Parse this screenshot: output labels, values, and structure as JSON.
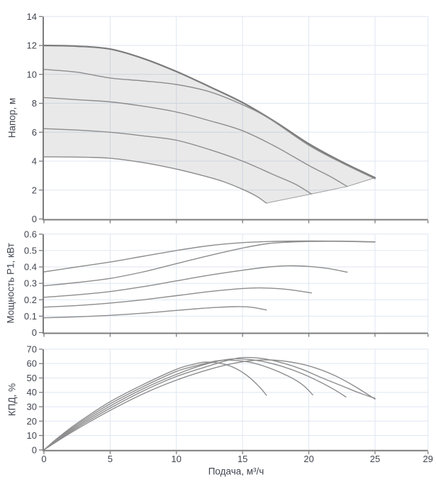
{
  "x_axis": {
    "label": "Подача, м³/ч",
    "min": 0,
    "max": 29,
    "tick_values": [
      0,
      5,
      10,
      15,
      20,
      25,
      29
    ],
    "tick_labels": [
      "0",
      "5",
      "10",
      "15",
      "20",
      "25",
      "29"
    ]
  },
  "colors": {
    "background": "#ffffff",
    "grid": "#dfe6f2",
    "axis": "#7c7c7c",
    "curve": "#8d8d8d",
    "curve_bold": "#7b7b7b",
    "envelope_fill": "rgba(120,120,120,0.16)",
    "envelope_edge": "#9d9d9d",
    "text": "#40454f"
  },
  "chart_data": [
    {
      "type": "line",
      "name": "head",
      "ylabel": "Напор, м",
      "ylim": [
        0,
        14
      ],
      "ytick_values": [
        0,
        2,
        4,
        6,
        8,
        10,
        12,
        14
      ],
      "ytick_labels": [
        "0",
        "2",
        "4",
        "6",
        "8",
        "10",
        "12",
        "14"
      ],
      "grid": true,
      "envelope_bottom": [
        [
          16.8,
          1.1
        ],
        [
          20.2,
          1.73
        ],
        [
          22.9,
          2.25
        ],
        [
          25,
          2.85
        ]
      ],
      "series": [
        {
          "name": "head-speed-1",
          "bold": true,
          "points": [
            [
              0,
              12.0
            ],
            [
              2.5,
              11.95
            ],
            [
              5,
              11.75
            ],
            [
              7.5,
              11.1
            ],
            [
              10,
              10.2
            ],
            [
              12.5,
              9.15
            ],
            [
              15,
              8.05
            ],
            [
              17.5,
              6.7
            ],
            [
              20,
              5.2
            ],
            [
              22.5,
              3.95
            ],
            [
              25,
              2.85
            ]
          ]
        },
        {
          "name": "head-speed-2",
          "points": [
            [
              0,
              10.35
            ],
            [
              2.5,
              10.15
            ],
            [
              5,
              9.75
            ],
            [
              7.5,
              9.55
            ],
            [
              10,
              9.3
            ],
            [
              12.5,
              8.8
            ],
            [
              15,
              7.9
            ],
            [
              17,
              6.95
            ],
            [
              20,
              5.1
            ],
            [
              22.5,
              3.88
            ],
            [
              25,
              2.78
            ]
          ]
        },
        {
          "name": "head-speed-3",
          "points": [
            [
              0,
              8.4
            ],
            [
              2.5,
              8.25
            ],
            [
              5,
              8.1
            ],
            [
              7.5,
              7.8
            ],
            [
              10,
              7.4
            ],
            [
              12.5,
              6.8
            ],
            [
              15,
              6.1
            ],
            [
              17.5,
              5.0
            ],
            [
              20,
              3.7
            ],
            [
              21.5,
              3.0
            ],
            [
              22.9,
              2.25
            ]
          ]
        },
        {
          "name": "head-speed-4",
          "points": [
            [
              0,
              6.25
            ],
            [
              2.5,
              6.15
            ],
            [
              5,
              6.0
            ],
            [
              7.5,
              5.75
            ],
            [
              10,
              5.45
            ],
            [
              12.5,
              4.8
            ],
            [
              15,
              4.0
            ],
            [
              17.5,
              3.0
            ],
            [
              19,
              2.4
            ],
            [
              20.2,
              1.73
            ]
          ]
        },
        {
          "name": "head-speed-5",
          "points": [
            [
              0,
              4.3
            ],
            [
              2.5,
              4.28
            ],
            [
              5,
              4.2
            ],
            [
              7.5,
              3.9
            ],
            [
              10,
              3.45
            ],
            [
              12,
              3.0
            ],
            [
              13.5,
              2.6
            ],
            [
              15,
              2.05
            ],
            [
              16,
              1.6
            ],
            [
              16.8,
              1.1
            ]
          ]
        }
      ]
    },
    {
      "type": "line",
      "name": "power",
      "ylabel": "Мощность P1, кВт",
      "ylim": [
        0,
        0.6
      ],
      "ytick_values": [
        0,
        0.1,
        0.2,
        0.3,
        0.4,
        0.5,
        0.6
      ],
      "ytick_labels": [
        "0",
        "0.1",
        "0.2",
        "0.3",
        "0.4",
        "0.5",
        "0.6"
      ],
      "grid": true,
      "series": [
        {
          "name": "power-speed-1",
          "points": [
            [
              0,
              0.37
            ],
            [
              2.5,
              0.4
            ],
            [
              5,
              0.43
            ],
            [
              7.5,
              0.465
            ],
            [
              10,
              0.5
            ],
            [
              12.5,
              0.53
            ],
            [
              15,
              0.548
            ],
            [
              17.5,
              0.556
            ],
            [
              20,
              0.558
            ],
            [
              22.5,
              0.557
            ],
            [
              25,
              0.553
            ]
          ]
        },
        {
          "name": "power-speed-2",
          "points": [
            [
              0,
              0.285
            ],
            [
              2.5,
              0.305
            ],
            [
              5,
              0.33
            ],
            [
              7.5,
              0.37
            ],
            [
              10,
              0.42
            ],
            [
              12.5,
              0.47
            ],
            [
              15,
              0.515
            ],
            [
              17,
              0.543
            ],
            [
              19,
              0.553
            ],
            [
              21,
              0.556
            ],
            [
              23,
              0.555
            ],
            [
              25,
              0.552
            ]
          ]
        },
        {
          "name": "power-speed-3",
          "points": [
            [
              0,
              0.215
            ],
            [
              2.5,
              0.23
            ],
            [
              5,
              0.25
            ],
            [
              7.5,
              0.28
            ],
            [
              10,
              0.315
            ],
            [
              12.5,
              0.35
            ],
            [
              15,
              0.38
            ],
            [
              17,
              0.4
            ],
            [
              18.5,
              0.407
            ],
            [
              20,
              0.403
            ],
            [
              21.5,
              0.39
            ],
            [
              22.9,
              0.368
            ]
          ]
        },
        {
          "name": "power-speed-4",
          "points": [
            [
              0,
              0.155
            ],
            [
              2.5,
              0.165
            ],
            [
              5,
              0.18
            ],
            [
              7.5,
              0.2
            ],
            [
              10,
              0.225
            ],
            [
              12.5,
              0.25
            ],
            [
              14,
              0.262
            ],
            [
              15.5,
              0.271
            ],
            [
              17,
              0.271
            ],
            [
              18.5,
              0.262
            ],
            [
              20.2,
              0.242
            ]
          ]
        },
        {
          "name": "power-speed-5",
          "points": [
            [
              0,
              0.09
            ],
            [
              2.5,
              0.096
            ],
            [
              5,
              0.105
            ],
            [
              7.5,
              0.118
            ],
            [
              10,
              0.135
            ],
            [
              11.5,
              0.145
            ],
            [
              13,
              0.153
            ],
            [
              14.5,
              0.158
            ],
            [
              15.7,
              0.154
            ],
            [
              16.8,
              0.138
            ]
          ]
        }
      ]
    },
    {
      "type": "line",
      "name": "efficiency",
      "ylabel": "КПД, %",
      "ylim": [
        0,
        70
      ],
      "ytick_values": [
        0,
        10,
        20,
        30,
        40,
        50,
        60,
        70
      ],
      "ytick_labels": [
        "0",
        "10",
        "20",
        "30",
        "40",
        "50",
        "60",
        "70"
      ],
      "grid": true,
      "series": [
        {
          "name": "efficiency-speed-1",
          "points": [
            [
              0,
              0
            ],
            [
              1,
              6
            ],
            [
              2.5,
              14.5
            ],
            [
              5,
              27.5
            ],
            [
              7.5,
              39
            ],
            [
              10,
              48.5
            ],
            [
              12.5,
              56
            ],
            [
              14.5,
              60.5
            ],
            [
              16,
              62.3
            ],
            [
              17.5,
              62.3
            ],
            [
              19,
              60.5
            ],
            [
              20.5,
              57
            ],
            [
              22,
              51.5
            ],
            [
              23.5,
              44
            ],
            [
              25,
              35.3
            ]
          ]
        },
        {
          "name": "efficiency-speed-2",
          "points": [
            [
              0,
              0
            ],
            [
              1,
              6.5
            ],
            [
              2.5,
              15.5
            ],
            [
              5,
              29
            ],
            [
              7.5,
              41
            ],
            [
              10,
              51
            ],
            [
              12.5,
              58.5
            ],
            [
              14,
              62.5
            ],
            [
              15,
              64.2
            ],
            [
              16.5,
              63.5
            ],
            [
              18,
              60.5
            ],
            [
              19.5,
              56
            ],
            [
              21,
              50
            ],
            [
              22.5,
              44.5
            ],
            [
              23.7,
              40
            ],
            [
              25,
              35.8
            ]
          ]
        },
        {
          "name": "efficiency-speed-3",
          "points": [
            [
              0,
              0
            ],
            [
              1,
              7
            ],
            [
              2.5,
              16.5
            ],
            [
              5,
              30.5
            ],
            [
              7.5,
              42.5
            ],
            [
              10,
              52.5
            ],
            [
              12,
              59
            ],
            [
              13.8,
              62.8
            ],
            [
              15,
              63.2
            ],
            [
              16.5,
              61.5
            ],
            [
              18,
              58
            ],
            [
              19.5,
              53
            ],
            [
              21,
              46.5
            ],
            [
              22,
              41.5
            ],
            [
              22.8,
              36.8
            ]
          ]
        },
        {
          "name": "efficiency-speed-4",
          "points": [
            [
              0,
              0
            ],
            [
              1,
              7.5
            ],
            [
              2.5,
              17.5
            ],
            [
              5,
              32
            ],
            [
              7.5,
              44
            ],
            [
              10,
              54.5
            ],
            [
              11.5,
              58.5
            ],
            [
              13,
              61.8
            ],
            [
              14,
              62.4
            ],
            [
              15.5,
              61
            ],
            [
              17,
              57
            ],
            [
              18.5,
              51
            ],
            [
              19.5,
              45.5
            ],
            [
              20.3,
              38.3
            ]
          ]
        },
        {
          "name": "efficiency-speed-5",
          "points": [
            [
              0,
              0
            ],
            [
              1,
              8
            ],
            [
              2.5,
              18.5
            ],
            [
              5,
              33.5
            ],
            [
              7.5,
              45.5
            ],
            [
              10,
              56
            ],
            [
              11.3,
              59.5
            ],
            [
              12.2,
              61
            ],
            [
              13.5,
              59.8
            ],
            [
              14.5,
              56.5
            ],
            [
              15.5,
              50.5
            ],
            [
              16.3,
              43.5
            ],
            [
              16.8,
              38
            ]
          ]
        }
      ]
    }
  ]
}
